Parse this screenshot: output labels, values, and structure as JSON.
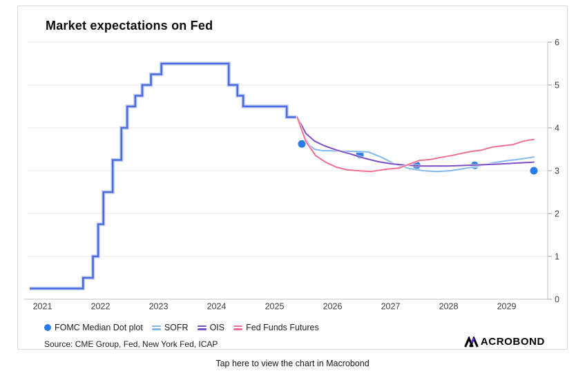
{
  "card": {
    "title": "Market expectations on Fed",
    "source": "Source: CME Group, Fed, New York Fed, ICAP",
    "logo_text": "ACROBOND"
  },
  "footer": {
    "tap_text": "Tap here to view the chart in Macrobond"
  },
  "legend": [
    {
      "label": "FOMC Median Dot plot",
      "marker": "dot",
      "color": "#2c7ce8"
    },
    {
      "label": "SOFR",
      "marker": "lines",
      "color": "#82b7f0"
    },
    {
      "label": "OIS",
      "marker": "lines",
      "color": "#7a4fc9"
    },
    {
      "label": "Fed Funds Futures",
      "marker": "lines",
      "color": "#f06f8e"
    }
  ],
  "chart_data": {
    "type": "line",
    "title": "Market expectations on Fed",
    "xlabel": "",
    "ylabel": "",
    "x_ticks": [
      2021,
      2022,
      2023,
      2024,
      2025,
      2026,
      2027,
      2028,
      2029
    ],
    "y_ticks": [
      0,
      1,
      2,
      3,
      4,
      5,
      6
    ],
    "ylim": [
      0,
      6
    ],
    "xlim": [
      2021.2,
      2030.2
    ],
    "grid": true,
    "y_axis_side": "right",
    "legend_position": "bottom",
    "colors": {
      "history_line": "#4a6be0",
      "history_halo": "#c7d2f3",
      "gridline": "#e8e8e8",
      "axis_line": "#c2c2c2",
      "tick_text": "#3d3d3d"
    },
    "series": [
      {
        "name": "Fed Funds Rate (history)",
        "type": "step",
        "color": "#4a6be0",
        "width": 2.6,
        "end": 2025.89,
        "points": [
          [
            2021.28,
            0.25
          ],
          [
            2022.2,
            0.5
          ],
          [
            2022.37,
            1.0
          ],
          [
            2022.46,
            1.75
          ],
          [
            2022.55,
            2.5
          ],
          [
            2022.71,
            3.25
          ],
          [
            2022.86,
            4.0
          ],
          [
            2022.96,
            4.5
          ],
          [
            2023.1,
            4.75
          ],
          [
            2023.22,
            5.0
          ],
          [
            2023.37,
            5.25
          ],
          [
            2023.55,
            5.5
          ],
          [
            2024.71,
            5.0
          ],
          [
            2024.86,
            4.75
          ],
          [
            2024.96,
            4.5
          ],
          [
            2025.71,
            4.25
          ]
        ]
      },
      {
        "name": "SOFR",
        "type": "line",
        "color": "#82b7f0",
        "width": 2,
        "points": [
          [
            2025.89,
            4.25
          ],
          [
            2026.0,
            3.82
          ],
          [
            2026.1,
            3.6
          ],
          [
            2026.19,
            3.5
          ],
          [
            2026.31,
            3.47
          ],
          [
            2026.57,
            3.46
          ],
          [
            2026.87,
            3.45
          ],
          [
            2027.11,
            3.44
          ],
          [
            2027.35,
            3.31
          ],
          [
            2027.58,
            3.15
          ],
          [
            2027.82,
            3.05
          ],
          [
            2028.06,
            3.0
          ],
          [
            2028.3,
            2.98
          ],
          [
            2028.54,
            3.0
          ],
          [
            2028.77,
            3.05
          ],
          [
            2028.99,
            3.1
          ],
          [
            2029.25,
            3.18
          ],
          [
            2029.49,
            3.23
          ],
          [
            2029.73,
            3.27
          ],
          [
            2029.97,
            3.32
          ]
        ]
      },
      {
        "name": "OIS",
        "type": "line",
        "color": "#7a4fc9",
        "width": 2,
        "points": [
          [
            2025.89,
            4.25
          ],
          [
            2026.04,
            3.87
          ],
          [
            2026.19,
            3.69
          ],
          [
            2026.36,
            3.58
          ],
          [
            2026.57,
            3.48
          ],
          [
            2026.81,
            3.39
          ],
          [
            2027.05,
            3.29
          ],
          [
            2027.29,
            3.21
          ],
          [
            2027.52,
            3.16
          ],
          [
            2027.76,
            3.13
          ],
          [
            2028.0,
            3.11
          ],
          [
            2028.48,
            3.11
          ],
          [
            2028.95,
            3.13
          ],
          [
            2029.43,
            3.16
          ],
          [
            2029.97,
            3.2
          ]
        ]
      },
      {
        "name": "Fed Funds Futures",
        "type": "line",
        "color": "#f06f8e",
        "width": 2,
        "points": [
          [
            2025.89,
            4.25
          ],
          [
            2026.04,
            3.68
          ],
          [
            2026.21,
            3.35
          ],
          [
            2026.39,
            3.19
          ],
          [
            2026.57,
            3.08
          ],
          [
            2026.75,
            3.02
          ],
          [
            2026.93,
            3.0
          ],
          [
            2027.17,
            2.98
          ],
          [
            2027.4,
            3.03
          ],
          [
            2027.64,
            3.06
          ],
          [
            2027.82,
            3.15
          ],
          [
            2028.0,
            3.24
          ],
          [
            2028.18,
            3.26
          ],
          [
            2028.36,
            3.31
          ],
          [
            2028.54,
            3.35
          ],
          [
            2028.71,
            3.4
          ],
          [
            2028.89,
            3.45
          ],
          [
            2029.07,
            3.48
          ],
          [
            2029.25,
            3.55
          ],
          [
            2029.43,
            3.58
          ],
          [
            2029.61,
            3.61
          ],
          [
            2029.79,
            3.69
          ],
          [
            2029.97,
            3.73
          ]
        ]
      }
    ],
    "dots": {
      "name": "FOMC Median Dot plot",
      "color": "#2c7ce8",
      "radius": 5.5,
      "points": [
        [
          2025.97,
          3.625
        ],
        [
          2026.97,
          3.375
        ],
        [
          2027.95,
          3.125
        ],
        [
          2028.95,
          3.125
        ],
        [
          2029.97,
          3.0
        ]
      ]
    }
  }
}
